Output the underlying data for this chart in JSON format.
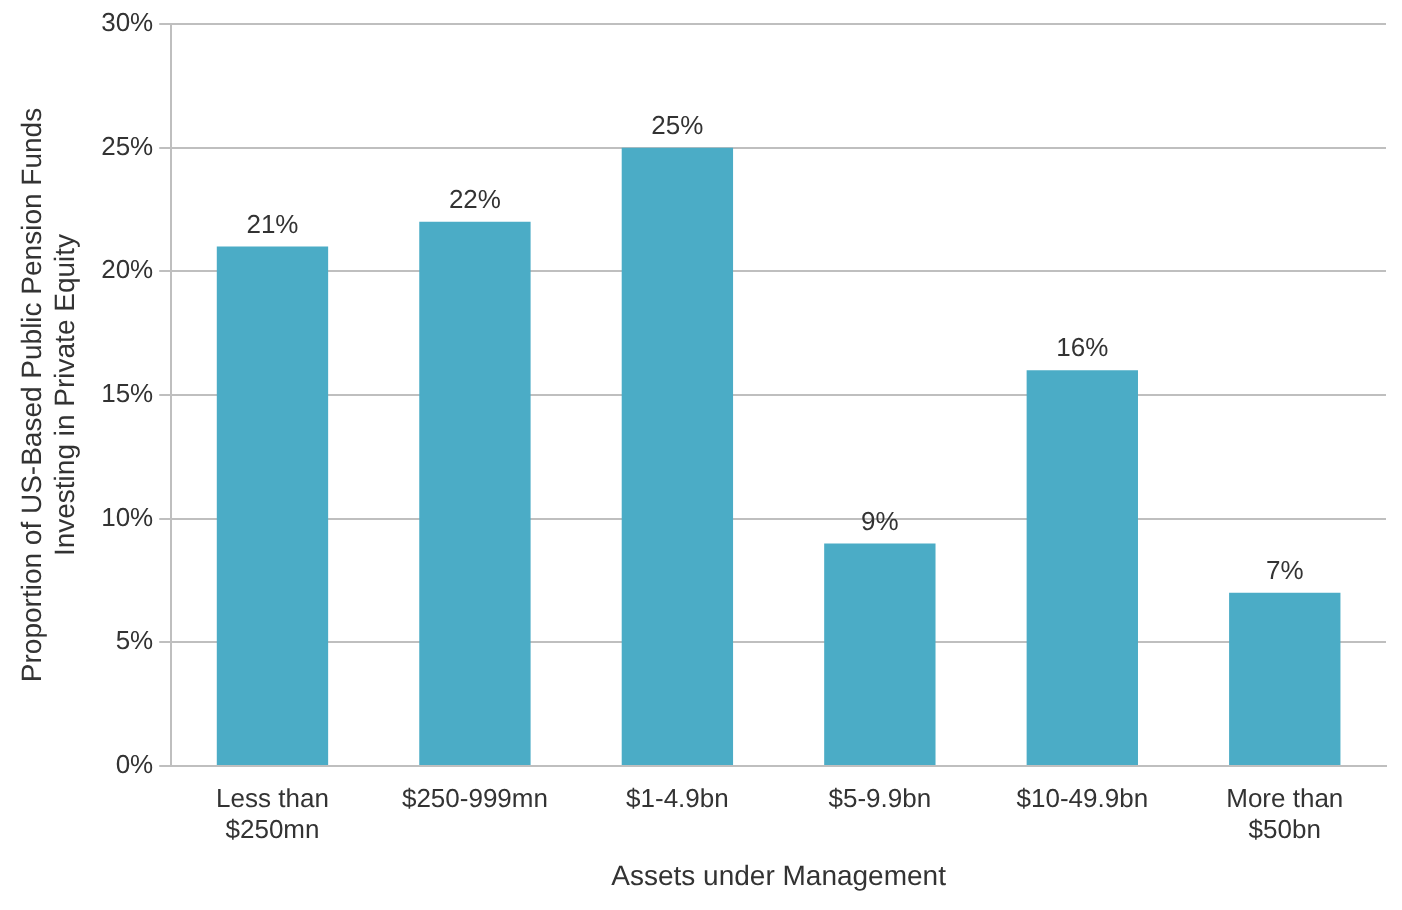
{
  "chart_data": {
    "type": "bar",
    "xlabel": "Assets under Management",
    "ylabel": "Proportion of US-Based Public Pension Funds Investing in Private Equity",
    "categories": [
      "Less than $250mn",
      "$250-999mn",
      "$1-4.9bn",
      "$5-9.9bn",
      "$10-49.9bn",
      "More than $50bn"
    ],
    "values": [
      21,
      22,
      25,
      9,
      16,
      7
    ],
    "value_labels": [
      "21%",
      "22%",
      "25%",
      "9%",
      "16%",
      "7%"
    ],
    "color": "#4bacc6",
    "ylim": [
      0,
      30
    ],
    "yticks": [
      {
        "value": 0,
        "label": "0%"
      },
      {
        "value": 5,
        "label": "5%"
      },
      {
        "value": 10,
        "label": "10%"
      },
      {
        "value": 15,
        "label": "15%"
      },
      {
        "value": 20,
        "label": "20%"
      },
      {
        "value": 25,
        "label": "25%"
      },
      {
        "value": 30,
        "label": "30%"
      }
    ],
    "grid": "y",
    "legend": false
  }
}
